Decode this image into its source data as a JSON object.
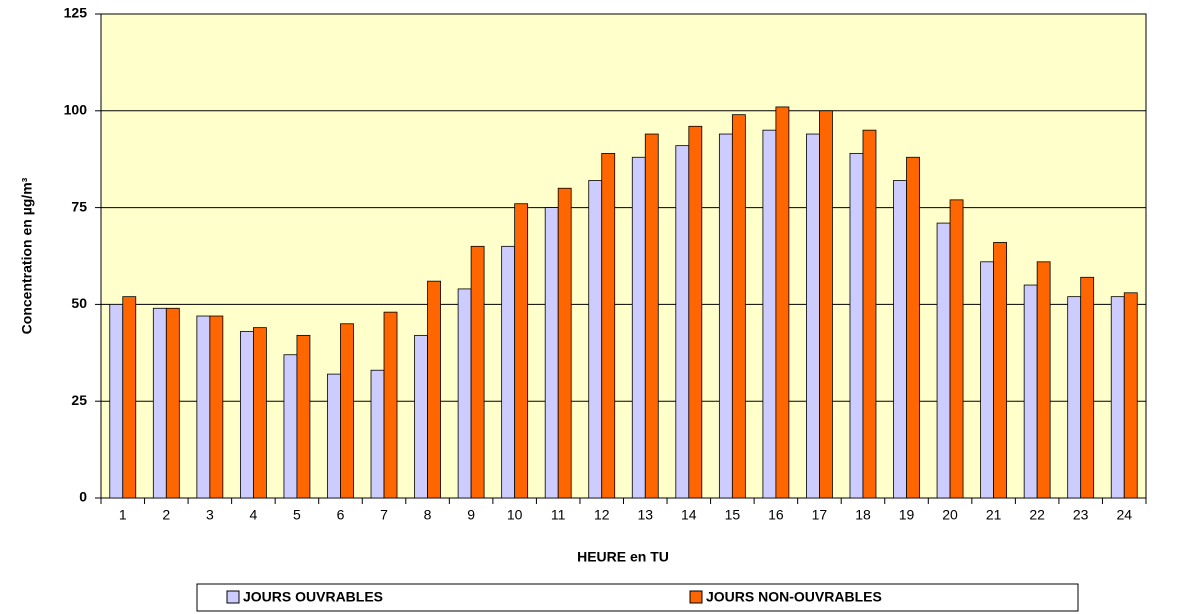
{
  "chart_data": {
    "type": "bar",
    "x_label": "HEURE en TU",
    "y_label": "Concentration en µg/m³",
    "categories": [
      "1",
      "2",
      "3",
      "4",
      "5",
      "6",
      "7",
      "8",
      "9",
      "10",
      "11",
      "12",
      "13",
      "14",
      "15",
      "16",
      "17",
      "18",
      "19",
      "20",
      "21",
      "22",
      "23",
      "24"
    ],
    "series": [
      {
        "name": "JOURS OUVRABLES",
        "color": "#ccccff",
        "values": [
          50,
          49,
          47,
          43,
          37,
          32,
          33,
          42,
          54,
          65,
          75,
          82,
          88,
          91,
          94,
          95,
          94,
          89,
          82,
          71,
          61,
          55,
          52,
          52
        ]
      },
      {
        "name": "JOURS NON-OUVRABLES",
        "color": "#ff6600",
        "values": [
          52,
          49,
          47,
          44,
          42,
          45,
          48,
          56,
          65,
          76,
          80,
          89,
          94,
          96,
          99,
          101,
          100,
          95,
          88,
          77,
          66,
          61,
          57,
          53
        ]
      }
    ],
    "ylim": [
      0,
      125
    ],
    "yticks": [
      0,
      25,
      50,
      75,
      100,
      125
    ],
    "grid": true,
    "legend": "bottom"
  }
}
